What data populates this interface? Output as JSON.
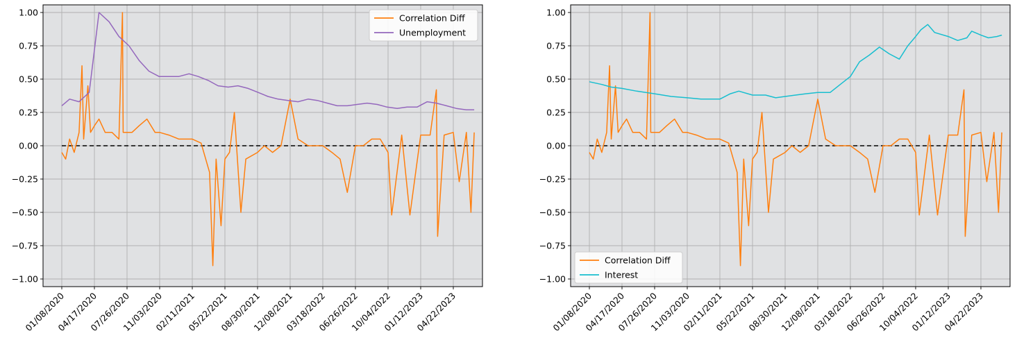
{
  "chart_data": [
    {
      "type": "line",
      "title": "",
      "xlabel": "",
      "ylabel": "",
      "ylim": [
        -1.0,
        1.0
      ],
      "yticks": [
        "−1.00",
        "−0.75",
        "−0.50",
        "−0.25",
        "0.00",
        "0.25",
        "0.50",
        "0.75",
        "1.00"
      ],
      "xticks": [
        "01/08/2020",
        "04/17/2020",
        "07/26/2020",
        "11/03/2020",
        "02/11/2021",
        "05/22/2021",
        "08/30/2021",
        "12/08/2021",
        "03/18/2022",
        "06/26/2022",
        "10/04/2022",
        "01/12/2023",
        "04/22/2023"
      ],
      "grid": true,
      "legend_position": "top-right",
      "zero_line": {
        "y": 0,
        "style": "dashed",
        "color": "#000000"
      },
      "series": [
        {
          "name": "Correlation Diff",
          "color": "#ff7f0e",
          "points": [
            [
              "01/08/2020",
              -0.05
            ],
            [
              "01/20/2020",
              -0.1
            ],
            [
              "02/01/2020",
              0.05
            ],
            [
              "02/15/2020",
              -0.05
            ],
            [
              "03/01/2020",
              0.1
            ],
            [
              "03/10/2020",
              0.6
            ],
            [
              "03/15/2020",
              0.05
            ],
            [
              "03/28/2020",
              0.45
            ],
            [
              "04/05/2020",
              0.1
            ],
            [
              "04/17/2020",
              0.15
            ],
            [
              "05/01/2020",
              0.2
            ],
            [
              "05/20/2020",
              0.1
            ],
            [
              "06/10/2020",
              0.1
            ],
            [
              "07/01/2020",
              0.05
            ],
            [
              "07/12/2020",
              1.0
            ],
            [
              "07/14/2020",
              0.1
            ],
            [
              "08/10/2020",
              0.1
            ],
            [
              "09/01/2020",
              0.15
            ],
            [
              "09/25/2020",
              0.2
            ],
            [
              "10/20/2020",
              0.1
            ],
            [
              "11/03/2020",
              0.1
            ],
            [
              "12/01/2020",
              0.08
            ],
            [
              "01/01/2021",
              0.05
            ],
            [
              "02/11/2021",
              0.05
            ],
            [
              "03/10/2021",
              0.02
            ],
            [
              "04/05/2021",
              -0.2
            ],
            [
              "04/15/2021",
              -0.9
            ],
            [
              "04/25/2021",
              -0.1
            ],
            [
              "05/10/2021",
              -0.6
            ],
            [
              "05/22/2021",
              -0.1
            ],
            [
              "06/05/2021",
              -0.05
            ],
            [
              "06/20/2021",
              0.25
            ],
            [
              "07/10/2021",
              -0.5
            ],
            [
              "07/25/2021",
              -0.1
            ],
            [
              "08/30/2021",
              -0.05
            ],
            [
              "09/20/2021",
              0.0
            ],
            [
              "10/15/2021",
              -0.05
            ],
            [
              "11/10/2021",
              0.0
            ],
            [
              "12/08/2021",
              0.35
            ],
            [
              "01/01/2022",
              0.05
            ],
            [
              "02/01/2022",
              0.0
            ],
            [
              "03/18/2022",
              0.0
            ],
            [
              "04/15/2022",
              -0.05
            ],
            [
              "05/10/2022",
              -0.1
            ],
            [
              "06/01/2022",
              -0.35
            ],
            [
              "06/26/2022",
              0.0
            ],
            [
              "07/20/2022",
              0.0
            ],
            [
              "08/15/2022",
              0.05
            ],
            [
              "09/10/2022",
              0.05
            ],
            [
              "10/04/2022",
              -0.05
            ],
            [
              "10/15/2022",
              -0.52
            ],
            [
              "11/15/2022",
              0.08
            ],
            [
              "12/10/2022",
              -0.52
            ],
            [
              "01/12/2023",
              0.08
            ],
            [
              "02/10/2023",
              0.08
            ],
            [
              "03/01/2023",
              0.42
            ],
            [
              "03/05/2023",
              -0.68
            ],
            [
              "03/25/2023",
              0.08
            ],
            [
              "04/22/2023",
              0.1
            ],
            [
              "05/10/2023",
              -0.27
            ],
            [
              "06/01/2023",
              0.1
            ],
            [
              "06/15/2023",
              -0.5
            ],
            [
              "06/25/2023",
              0.1
            ]
          ]
        },
        {
          "name": "Unemployment",
          "color": "#9467bd",
          "points": [
            [
              "01/08/2020",
              0.3
            ],
            [
              "02/01/2020",
              0.35
            ],
            [
              "03/01/2020",
              0.33
            ],
            [
              "04/01/2020",
              0.4
            ],
            [
              "05/01/2020",
              1.0
            ],
            [
              "06/01/2020",
              0.93
            ],
            [
              "07/01/2020",
              0.82
            ],
            [
              "08/01/2020",
              0.75
            ],
            [
              "09/01/2020",
              0.64
            ],
            [
              "10/01/2020",
              0.56
            ],
            [
              "11/01/2020",
              0.52
            ],
            [
              "12/01/2020",
              0.52
            ],
            [
              "01/01/2021",
              0.52
            ],
            [
              "02/01/2021",
              0.54
            ],
            [
              "03/01/2021",
              0.52
            ],
            [
              "04/01/2021",
              0.49
            ],
            [
              "05/01/2021",
              0.45
            ],
            [
              "06/01/2021",
              0.44
            ],
            [
              "07/01/2021",
              0.45
            ],
            [
              "08/01/2021",
              0.43
            ],
            [
              "09/01/2021",
              0.4
            ],
            [
              "10/01/2021",
              0.37
            ],
            [
              "11/01/2021",
              0.35
            ],
            [
              "12/01/2021",
              0.34
            ],
            [
              "01/01/2022",
              0.33
            ],
            [
              "02/01/2022",
              0.35
            ],
            [
              "03/01/2022",
              0.34
            ],
            [
              "04/01/2022",
              0.32
            ],
            [
              "05/01/2022",
              0.3
            ],
            [
              "06/01/2022",
              0.3
            ],
            [
              "07/01/2022",
              0.31
            ],
            [
              "08/01/2022",
              0.32
            ],
            [
              "09/01/2022",
              0.31
            ],
            [
              "10/01/2022",
              0.29
            ],
            [
              "11/01/2022",
              0.28
            ],
            [
              "12/01/2022",
              0.29
            ],
            [
              "01/01/2023",
              0.29
            ],
            [
              "02/01/2023",
              0.33
            ],
            [
              "03/01/2023",
              0.32
            ],
            [
              "04/01/2023",
              0.3
            ],
            [
              "05/01/2023",
              0.28
            ],
            [
              "06/01/2023",
              0.27
            ],
            [
              "06/25/2023",
              0.27
            ]
          ]
        }
      ]
    },
    {
      "type": "line",
      "title": "",
      "xlabel": "",
      "ylabel": "",
      "ylim": [
        -1.0,
        1.0
      ],
      "yticks": [
        "−1.00",
        "−0.75",
        "−0.50",
        "−0.25",
        "0.00",
        "0.25",
        "0.50",
        "0.75",
        "1.00"
      ],
      "xticks": [
        "01/08/2020",
        "04/17/2020",
        "07/26/2020",
        "11/03/2020",
        "02/11/2021",
        "05/22/2021",
        "08/30/2021",
        "12/08/2021",
        "03/18/2022",
        "06/26/2022",
        "10/04/2022",
        "01/12/2023",
        "04/22/2023"
      ],
      "grid": true,
      "legend_position": "bottom-left",
      "zero_line": {
        "y": 0,
        "style": "dashed",
        "color": "#000000"
      },
      "series": [
        {
          "name": "Correlation Diff",
          "color": "#ff7f0e",
          "points": [
            [
              "01/08/2020",
              -0.05
            ],
            [
              "01/20/2020",
              -0.1
            ],
            [
              "02/01/2020",
              0.05
            ],
            [
              "02/15/2020",
              -0.05
            ],
            [
              "03/01/2020",
              0.1
            ],
            [
              "03/10/2020",
              0.6
            ],
            [
              "03/15/2020",
              0.05
            ],
            [
              "03/28/2020",
              0.45
            ],
            [
              "04/05/2020",
              0.1
            ],
            [
              "04/17/2020",
              0.15
            ],
            [
              "05/01/2020",
              0.2
            ],
            [
              "05/20/2020",
              0.1
            ],
            [
              "06/10/2020",
              0.1
            ],
            [
              "07/01/2020",
              0.05
            ],
            [
              "07/12/2020",
              1.0
            ],
            [
              "07/14/2020",
              0.1
            ],
            [
              "08/10/2020",
              0.1
            ],
            [
              "09/01/2020",
              0.15
            ],
            [
              "09/25/2020",
              0.2
            ],
            [
              "10/20/2020",
              0.1
            ],
            [
              "11/03/2020",
              0.1
            ],
            [
              "12/01/2020",
              0.08
            ],
            [
              "01/01/2021",
              0.05
            ],
            [
              "02/11/2021",
              0.05
            ],
            [
              "03/10/2021",
              0.02
            ],
            [
              "04/05/2021",
              -0.2
            ],
            [
              "04/15/2021",
              -0.9
            ],
            [
              "04/25/2021",
              -0.1
            ],
            [
              "05/10/2021",
              -0.6
            ],
            [
              "05/22/2021",
              -0.1
            ],
            [
              "06/05/2021",
              -0.05
            ],
            [
              "06/20/2021",
              0.25
            ],
            [
              "07/10/2021",
              -0.5
            ],
            [
              "07/25/2021",
              -0.1
            ],
            [
              "08/30/2021",
              -0.05
            ],
            [
              "09/20/2021",
              0.0
            ],
            [
              "10/15/2021",
              -0.05
            ],
            [
              "11/10/2021",
              0.0
            ],
            [
              "12/08/2021",
              0.35
            ],
            [
              "01/01/2022",
              0.05
            ],
            [
              "02/01/2022",
              0.0
            ],
            [
              "03/18/2022",
              0.0
            ],
            [
              "04/15/2022",
              -0.05
            ],
            [
              "05/10/2022",
              -0.1
            ],
            [
              "06/01/2022",
              -0.35
            ],
            [
              "06/26/2022",
              0.0
            ],
            [
              "07/20/2022",
              0.0
            ],
            [
              "08/15/2022",
              0.05
            ],
            [
              "09/10/2022",
              0.05
            ],
            [
              "10/04/2022",
              -0.05
            ],
            [
              "10/15/2022",
              -0.52
            ],
            [
              "11/15/2022",
              0.08
            ],
            [
              "12/10/2022",
              -0.52
            ],
            [
              "01/12/2023",
              0.08
            ],
            [
              "02/10/2023",
              0.08
            ],
            [
              "03/01/2023",
              0.42
            ],
            [
              "03/05/2023",
              -0.68
            ],
            [
              "03/25/2023",
              0.08
            ],
            [
              "04/22/2023",
              0.1
            ],
            [
              "05/10/2023",
              -0.27
            ],
            [
              "06/01/2023",
              0.1
            ],
            [
              "06/15/2023",
              -0.5
            ],
            [
              "06/25/2023",
              0.1
            ]
          ]
        },
        {
          "name": "Interest",
          "color": "#17becf",
          "points": [
            [
              "01/08/2020",
              0.48
            ],
            [
              "02/15/2020",
              0.46
            ],
            [
              "03/15/2020",
              0.44
            ],
            [
              "04/17/2020",
              0.43
            ],
            [
              "06/01/2020",
              0.41
            ],
            [
              "07/26/2020",
              0.39
            ],
            [
              "09/15/2020",
              0.37
            ],
            [
              "11/03/2020",
              0.36
            ],
            [
              "12/15/2020",
              0.35
            ],
            [
              "02/11/2021",
              0.35
            ],
            [
              "03/15/2021",
              0.39
            ],
            [
              "04/10/2021",
              0.41
            ],
            [
              "05/22/2021",
              0.38
            ],
            [
              "07/01/2021",
              0.38
            ],
            [
              "08/01/2021",
              0.36
            ],
            [
              "08/30/2021",
              0.37
            ],
            [
              "10/01/2021",
              0.38
            ],
            [
              "11/01/2021",
              0.39
            ],
            [
              "12/08/2021",
              0.4
            ],
            [
              "01/15/2022",
              0.4
            ],
            [
              "02/15/2022",
              0.46
            ],
            [
              "03/18/2022",
              0.52
            ],
            [
              "04/15/2022",
              0.63
            ],
            [
              "05/15/2022",
              0.68
            ],
            [
              "06/15/2022",
              0.74
            ],
            [
              "07/15/2022",
              0.69
            ],
            [
              "08/15/2022",
              0.65
            ],
            [
              "09/10/2022",
              0.75
            ],
            [
              "10/04/2022",
              0.82
            ],
            [
              "10/20/2022",
              0.87
            ],
            [
              "11/10/2022",
              0.91
            ],
            [
              "12/01/2022",
              0.85
            ],
            [
              "01/12/2023",
              0.82
            ],
            [
              "02/10/2023",
              0.79
            ],
            [
              "03/10/2023",
              0.81
            ],
            [
              "03/25/2023",
              0.86
            ],
            [
              "04/22/2023",
              0.83
            ],
            [
              "05/15/2023",
              0.81
            ],
            [
              "06/10/2023",
              0.82
            ],
            [
              "06/25/2023",
              0.83
            ]
          ]
        }
      ]
    }
  ]
}
